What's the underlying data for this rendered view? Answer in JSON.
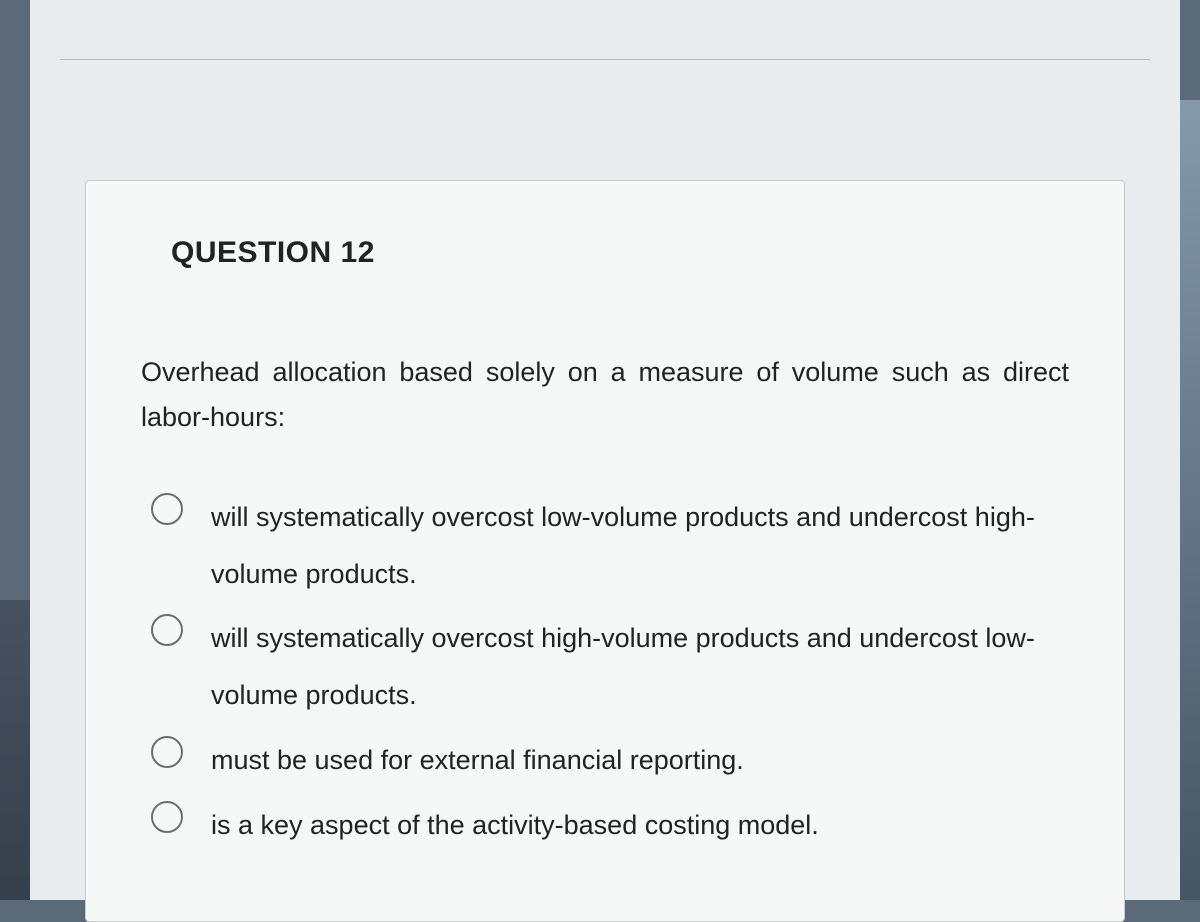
{
  "quiz": {
    "title_fragment": ""
  },
  "question": {
    "header": "QUESTION 12",
    "prompt": "Overhead allocation based solely on a measure of volume such as direct labor-hours:",
    "options": [
      "will systematically overcost low-volume products and undercost high-volume products.",
      "will systematically overcost high-volume products and undercost low-volume products.",
      "must be used for external financial reporting.",
      "is a key aspect of the activity-based costing model."
    ]
  }
}
